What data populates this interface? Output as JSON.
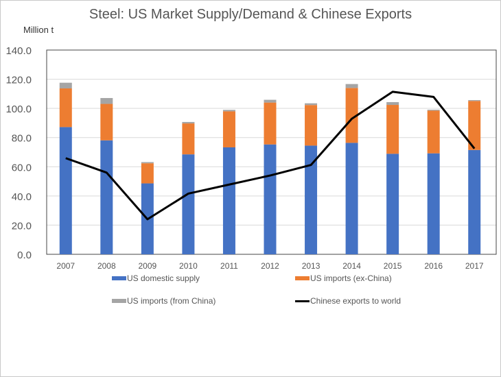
{
  "chart_data": {
    "type": "bar",
    "stacked": true,
    "title": "Steel: US Market Supply/Demand & Chinese Exports",
    "ylabel": "Million t",
    "xlabel": "",
    "ylim": [
      0,
      140
    ],
    "yticks": [
      "0.0",
      "20.0",
      "40.0",
      "60.0",
      "80.0",
      "100.0",
      "120.0",
      "140.0"
    ],
    "grid": true,
    "legend_position": "bottom",
    "categories": [
      "2007",
      "2008",
      "2009",
      "2010",
      "2011",
      "2012",
      "2013",
      "2014",
      "2015",
      "2016",
      "2017"
    ],
    "series": [
      {
        "name": "US domestic supply",
        "kind": "bar",
        "color": "#4472C4",
        "values": [
          87.2,
          78.1,
          48.6,
          68.5,
          73.3,
          75.3,
          74.5,
          76.4,
          68.9,
          69.2,
          71.5
        ]
      },
      {
        "name": "US imports (ex-China)",
        "kind": "bar",
        "color": "#ED7D31",
        "values": [
          26.5,
          25.0,
          13.8,
          21.2,
          24.7,
          28.7,
          27.8,
          37.6,
          33.5,
          29.3,
          33.6
        ]
      },
      {
        "name": "US imports (from China)",
        "kind": "bar",
        "color": "#A5A5A5",
        "values": [
          3.9,
          4.0,
          0.8,
          1.0,
          1.0,
          1.9,
          1.2,
          2.7,
          1.9,
          0.6,
          0.6
        ]
      },
      {
        "name": "Chinese exports to world",
        "kind": "line",
        "color": "#000000",
        "values": [
          65.9,
          56.0,
          24.0,
          41.6,
          47.8,
          54.0,
          61.2,
          92.9,
          111.4,
          107.9,
          72.5
        ]
      }
    ]
  }
}
